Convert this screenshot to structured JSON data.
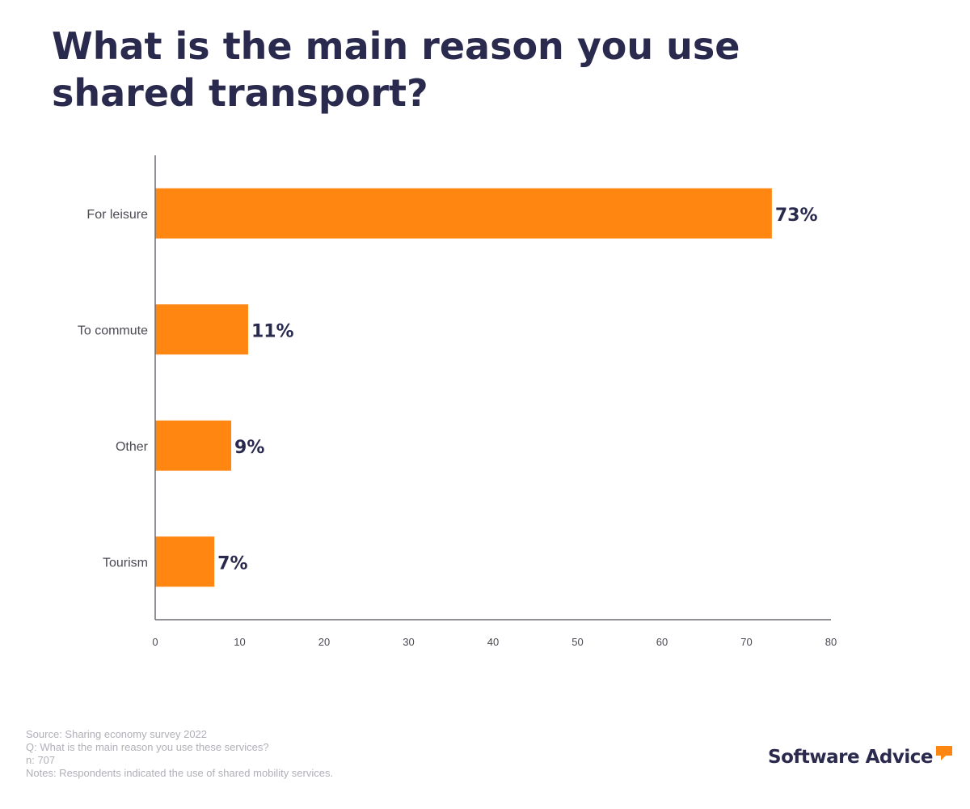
{
  "chart_data": {
    "type": "bar",
    "orientation": "horizontal",
    "title": "What is the main reason you use shared transport?",
    "categories": [
      "For leisure",
      "To commute",
      "Other",
      "Tourism"
    ],
    "values": [
      73,
      11,
      9,
      7
    ],
    "data_labels": [
      "73%",
      "11%",
      "9%",
      "7%"
    ],
    "xlim": [
      0,
      80
    ],
    "xticks": [
      0,
      10,
      20,
      30,
      40,
      50,
      60,
      70,
      80
    ],
    "xlabel": "",
    "ylabel": "",
    "grid": false,
    "bar_color": "#ff8611",
    "label_color": "#2a2a4e"
  },
  "footer": {
    "source": "Source: Sharing economy survey 2022",
    "question": "Q: What is the main reason you use these services?",
    "n": "n: 707",
    "notes": "Notes: Respondents indicated the use of shared mobility services."
  },
  "logo": {
    "text": "Software Advice",
    "accent_color": "#ff8611"
  }
}
